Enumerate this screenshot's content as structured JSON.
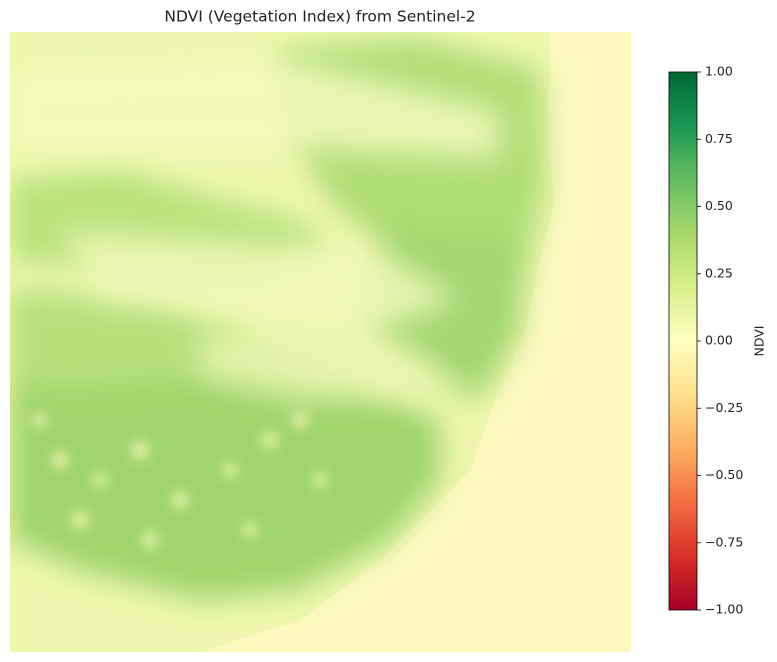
{
  "chart_data": {
    "type": "heatmap",
    "title": "NDVI (Vegetation Index) from Sentinel-2",
    "colorbar_label": "NDVI",
    "clim": [
      -1,
      1
    ],
    "colormap": [
      "#a50026",
      "#d73027",
      "#f46d43",
      "#fdae61",
      "#fee08b",
      "#ffffbf",
      "#d9ef8b",
      "#a6d96a",
      "#66bd63",
      "#1a9850",
      "#006837"
    ],
    "cticks": [
      {
        "value": -1,
        "label": "−1.00"
      },
      {
        "value": -0.75,
        "label": "−0.75"
      },
      {
        "value": -0.5,
        "label": "−0.50"
      },
      {
        "value": -0.25,
        "label": "−0.25"
      },
      {
        "value": 0,
        "label": "0.00"
      },
      {
        "value": 0.25,
        "label": "0.25"
      },
      {
        "value": 0.5,
        "label": "0.50"
      },
      {
        "value": 0.75,
        "label": "0.75"
      },
      {
        "value": 1,
        "label": "1.00"
      }
    ]
  }
}
